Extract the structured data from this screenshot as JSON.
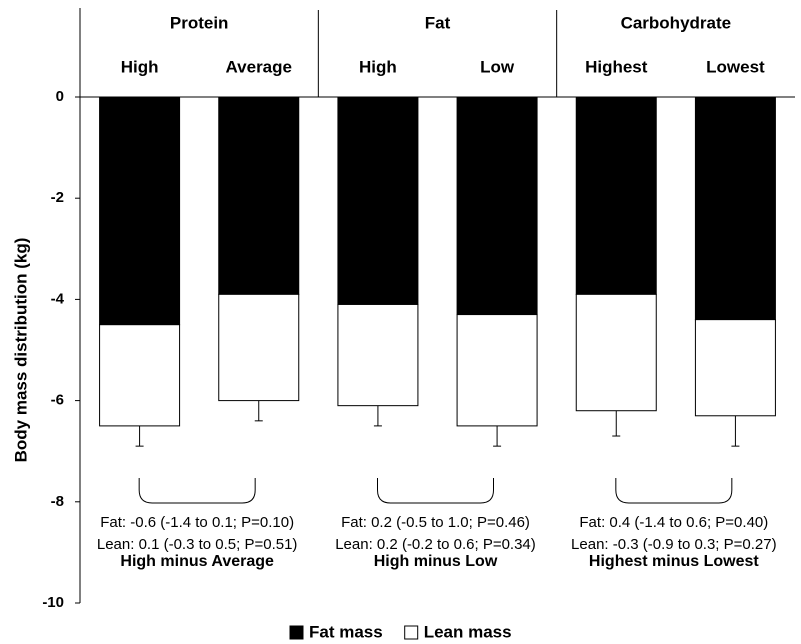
{
  "chart_data": {
    "type": "bar",
    "stacked": true,
    "ylabel": "Body mass distribution (kg)",
    "groups": [
      "Protein",
      "Fat",
      "Carbohydrate"
    ],
    "categories": [
      "High",
      "Average",
      "High",
      "Low",
      "Highest",
      "Lowest"
    ],
    "series": [
      {
        "name": "Fat mass",
        "color": "#000000",
        "values": [
          -4.5,
          -3.9,
          -4.1,
          -4.3,
          -3.9,
          -4.4
        ]
      },
      {
        "name": "Lean mass",
        "color": "#ffffff",
        "values": [
          -2.0,
          -2.1,
          -2.0,
          -2.2,
          -2.3,
          -1.9
        ]
      }
    ],
    "errors": [
      0.4,
      0.4,
      0.4,
      0.4,
      0.5,
      0.6
    ],
    "comparisons": [
      {
        "fat": "Fat: -0.6 (-1.4 to 0.1; P=0.10)",
        "lean": "Lean: 0.1 (-0.3 to 0.5; P=0.51)",
        "label": "High minus Average"
      },
      {
        "fat": "Fat: 0.2 (-0.5 to 1.0; P=0.46)",
        "lean": "Lean: 0.2 (-0.2 to 0.6; P=0.34)",
        "label": "High minus Low"
      },
      {
        "fat": "Fat: 0.4 (-1.4 to 0.6; P=0.40)",
        "lean": "Lean: -0.3 (-0.9 to 0.3; P=0.27)",
        "label": "Highest minus Lowest"
      }
    ],
    "ylim": [
      -10,
      0
    ],
    "yticks": [
      0,
      -2,
      -4,
      -6,
      -8,
      -10
    ],
    "grid": false,
    "legend": "bottom"
  }
}
